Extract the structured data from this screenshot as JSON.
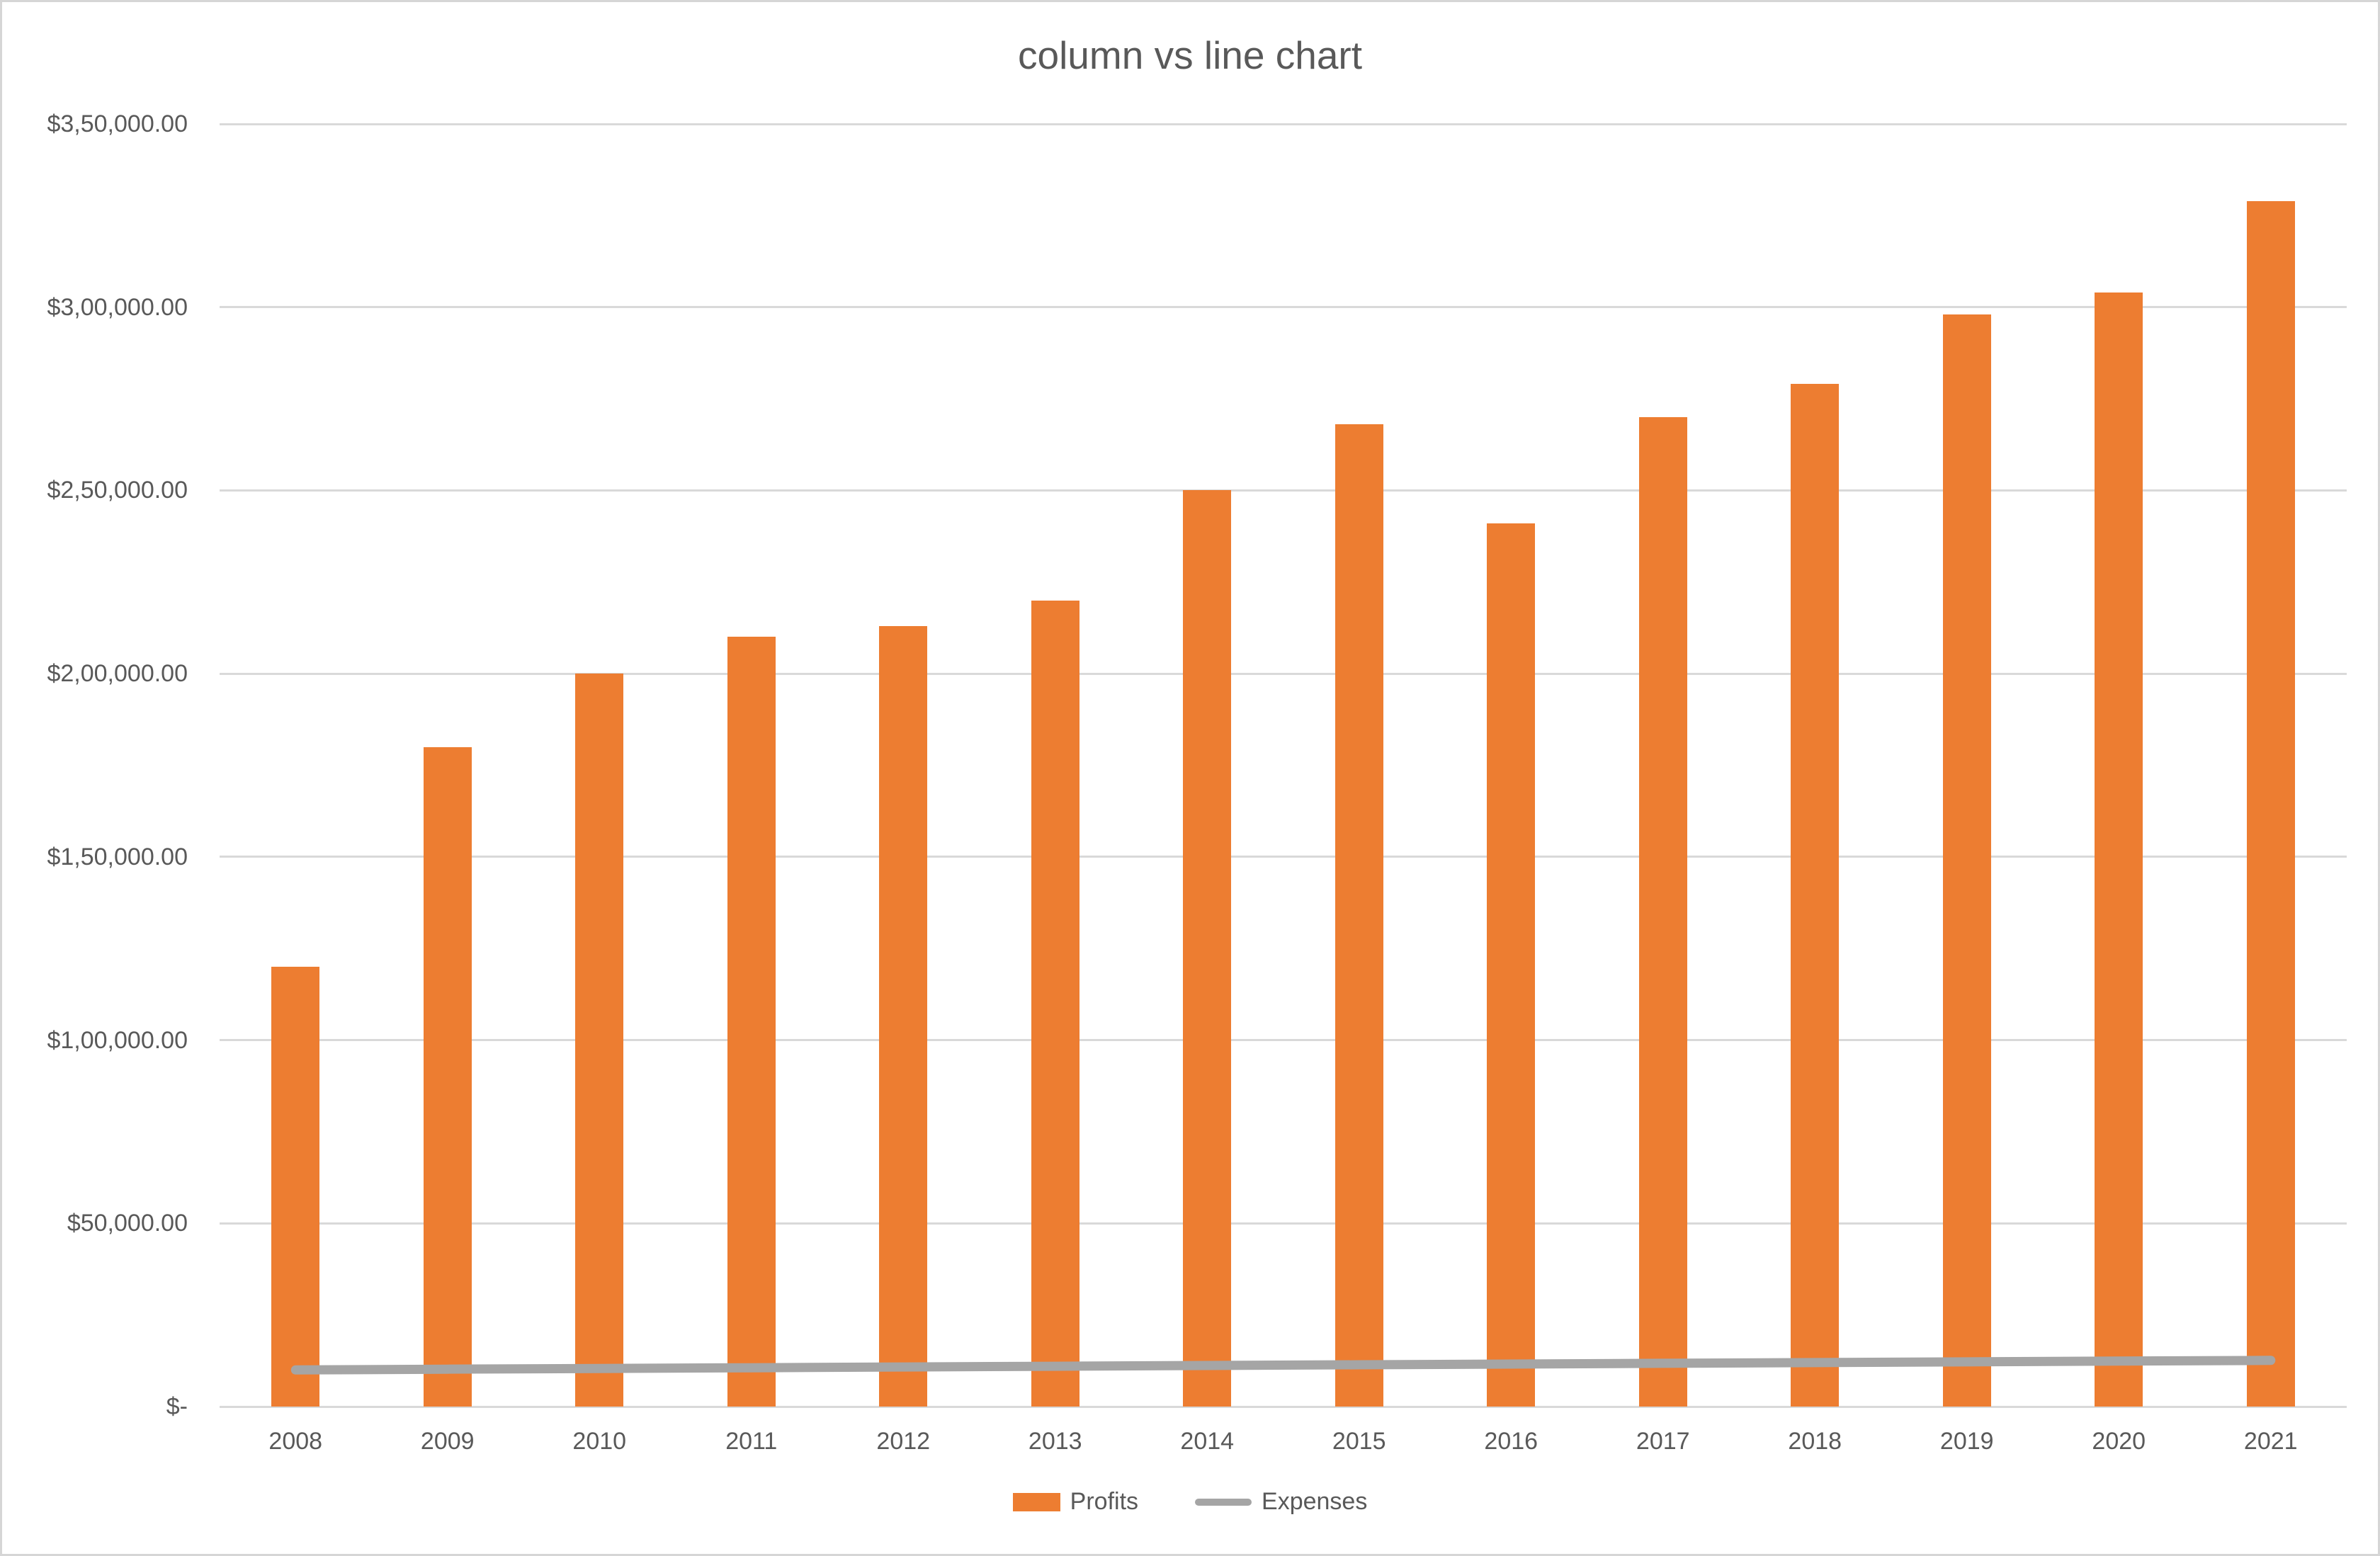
{
  "title": "column vs line chart",
  "colors": {
    "bar": "#ed7d31",
    "line": "#a5a5a5",
    "gridline": "#d9d9d9",
    "axis_text": "#595959",
    "title_text": "#595959",
    "chart_border": "#d6d6d6"
  },
  "legend": {
    "items": [
      {
        "label": "Profits",
        "swatch": "bar-swatch"
      },
      {
        "label": "Expenses",
        "swatch": "line-swatch"
      }
    ],
    "position": "bottom-center"
  },
  "y_axis": {
    "min": 0,
    "max": 350000,
    "step": 50000,
    "tick_labels": [
      "$3,50,000.00",
      "$3,00,000.00",
      "$2,50,000.00",
      "$2,00,000.00",
      "$1,50,000.00",
      "$1,00,000.00",
      "$50,000.00",
      "$-"
    ]
  },
  "chart_data": {
    "type": "bar",
    "title": "column vs line chart",
    "categories": [
      "2008",
      "2009",
      "2010",
      "2011",
      "2012",
      "2013",
      "2014",
      "2015",
      "2016",
      "2017",
      "2018",
      "2019",
      "2020",
      "2021"
    ],
    "series": [
      {
        "name": "Profits",
        "render": "column",
        "values": [
          120000,
          180000,
          200000,
          210000,
          213000,
          220000,
          250000,
          268000,
          241000,
          270000,
          279000,
          298000,
          304000,
          329000
        ]
      },
      {
        "name": "Expenses",
        "render": "line",
        "values": [
          10000,
          10200,
          10400,
          10600,
          10800,
          11000,
          11200,
          11400,
          11600,
          11800,
          12000,
          12200,
          12400,
          12600
        ]
      }
    ],
    "xlabel": "",
    "ylabel": "",
    "ylim": [
      0,
      350000
    ],
    "grid": true,
    "legend_position": "bottom"
  }
}
